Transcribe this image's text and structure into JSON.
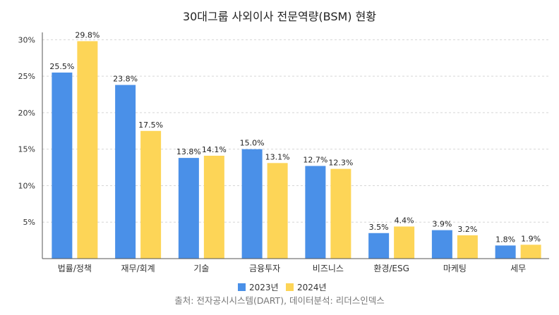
{
  "chart_data": {
    "type": "bar",
    "title": "30대그룹 사외이사 전문역량(BSM) 현황",
    "categories": [
      "법률/정책",
      "재무/회계",
      "기술",
      "금융투자",
      "비즈니스",
      "환경/ESG",
      "마케팅",
      "세무"
    ],
    "series": [
      {
        "name": "2023년",
        "color": "#4a90e8",
        "values": [
          25.5,
          23.8,
          13.8,
          15.0,
          12.7,
          3.5,
          3.9,
          1.8
        ],
        "labels": [
          "25.5%",
          "23.8%",
          "13.8%",
          "15.0%",
          "12.7%",
          "3.5%",
          "3.9%",
          "1.8%"
        ]
      },
      {
        "name": "2024년",
        "color": "#fdd557",
        "values": [
          29.8,
          17.5,
          14.1,
          13.1,
          12.3,
          4.4,
          3.2,
          1.9
        ],
        "labels": [
          "29.8%",
          "17.5%",
          "14.1%",
          "13.1%",
          "12.3%",
          "4.4%",
          "3.2%",
          "1.9%"
        ]
      }
    ],
    "yticks": [
      "5%",
      "10%",
      "15%",
      "20%",
      "25%",
      "30%"
    ],
    "ylim": [
      0,
      31
    ],
    "grid": true,
    "legend_position": "bottom"
  },
  "source_note": "출처: 전자공시시스템(DART), 데이터분석: 리더스인덱스"
}
